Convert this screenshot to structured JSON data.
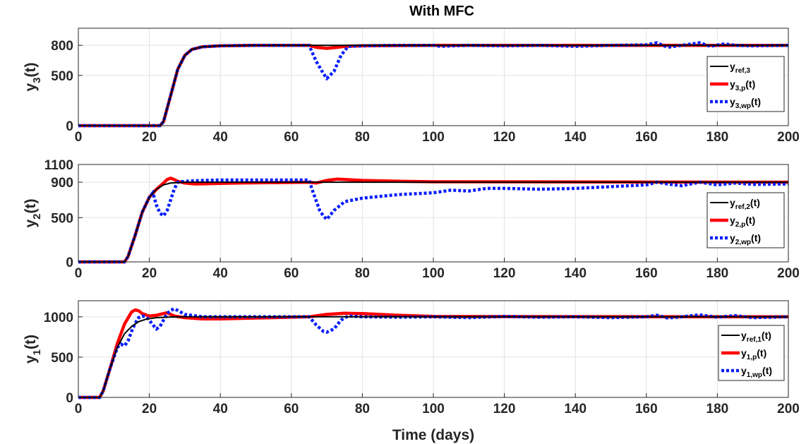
{
  "figure": {
    "title": "With MFC",
    "xlabel": "Time (days)"
  },
  "colors": {
    "ref": "#000000",
    "p": "#ff0000",
    "wp": "#0a1eff",
    "grid": "#e2e2e2"
  },
  "chart_data": [
    {
      "type": "line",
      "ylabel": {
        "main": "y",
        "sub": "3",
        "tail": "(t)"
      },
      "xlim": [
        0,
        200
      ],
      "ylim": [
        0,
        970
      ],
      "xticks": [
        "0",
        "20",
        "40",
        "60",
        "80",
        "100",
        "120",
        "140",
        "160",
        "180",
        "200"
      ],
      "yticks": [
        {
          "v": 0,
          "label": "0"
        },
        {
          "v": 500,
          "label": "500"
        },
        {
          "v": 800,
          "label": "800"
        }
      ],
      "legend_position": "right",
      "legend": [
        {
          "key": "ref",
          "main": "y",
          "sub": "ref,3",
          "tail": ""
        },
        {
          "key": "p",
          "main": "y",
          "sub": "3,p",
          "tail": "(t)"
        },
        {
          "key": "wp",
          "main": "y",
          "sub": "3,wp",
          "tail": "(t)"
        }
      ],
      "series": [
        {
          "key": "ref",
          "style": "solid",
          "x": [
            0,
            23,
            24,
            26,
            28,
            30,
            32,
            35,
            40,
            50,
            60,
            200
          ],
          "y": [
            0,
            0,
            40,
            300,
            560,
            700,
            760,
            785,
            795,
            800,
            800,
            800
          ]
        },
        {
          "key": "p",
          "style": "thick",
          "x": [
            0,
            23,
            24,
            26,
            28,
            30,
            32,
            35,
            40,
            50,
            60,
            65,
            67,
            70,
            73,
            75,
            80,
            100,
            200
          ],
          "y": [
            0,
            0,
            40,
            300,
            560,
            700,
            760,
            785,
            795,
            800,
            800,
            800,
            780,
            770,
            780,
            790,
            795,
            800,
            800
          ]
        },
        {
          "key": "wp",
          "style": "dotted",
          "x": [
            0,
            23,
            24,
            26,
            28,
            30,
            32,
            35,
            40,
            50,
            60,
            65,
            67,
            69,
            70,
            72,
            74,
            76,
            80,
            90,
            100,
            102,
            110,
            120,
            130,
            140,
            150,
            160,
            163,
            166,
            170,
            175,
            178,
            182,
            185,
            190,
            200
          ],
          "y": [
            0,
            0,
            40,
            300,
            560,
            700,
            760,
            785,
            795,
            800,
            800,
            800,
            640,
            520,
            470,
            540,
            700,
            790,
            795,
            800,
            800,
            790,
            800,
            795,
            800,
            790,
            800,
            805,
            825,
            780,
            800,
            825,
            790,
            815,
            800,
            795,
            800
          ]
        }
      ]
    },
    {
      "type": "line",
      "ylabel": {
        "main": "y",
        "sub": "2",
        "tail": "(t)"
      },
      "xlim": [
        0,
        200
      ],
      "ylim": [
        0,
        1100
      ],
      "xticks": [
        "0",
        "20",
        "40",
        "60",
        "80",
        "100",
        "120",
        "140",
        "160",
        "180",
        "200"
      ],
      "yticks": [
        {
          "v": 0,
          "label": "0"
        },
        {
          "v": 500,
          "label": "500"
        },
        {
          "v": 900,
          "label": "900"
        },
        {
          "v": 1100,
          "label": "1100"
        }
      ],
      "legend_position": "right",
      "legend": [
        {
          "key": "ref",
          "main": "y",
          "sub": "ref,2",
          "tail": "(t)"
        },
        {
          "key": "p",
          "main": "y",
          "sub": "2,p",
          "tail": "(t)"
        },
        {
          "key": "wp",
          "main": "y",
          "sub": "2,wp",
          "tail": "(t)"
        }
      ],
      "series": [
        {
          "key": "ref",
          "style": "solid",
          "x": [
            0,
            13,
            14,
            16,
            18,
            20,
            22,
            24,
            26,
            30,
            40,
            200
          ],
          "y": [
            0,
            0,
            60,
            300,
            560,
            730,
            820,
            870,
            890,
            900,
            900,
            900
          ]
        },
        {
          "key": "p",
          "style": "thick",
          "x": [
            0,
            13,
            14,
            16,
            18,
            20,
            22,
            24,
            25,
            26,
            27,
            28,
            30,
            33,
            38,
            45,
            55,
            65,
            67,
            70,
            73,
            80,
            90,
            100,
            200
          ],
          "y": [
            0,
            0,
            60,
            300,
            560,
            730,
            820,
            890,
            930,
            945,
            930,
            910,
            890,
            880,
            885,
            890,
            895,
            900,
            890,
            920,
            935,
            920,
            910,
            905,
            900
          ]
        },
        {
          "key": "wp",
          "style": "dotted",
          "x": [
            0,
            13,
            14,
            16,
            18,
            20,
            21,
            22,
            23,
            24,
            25,
            26,
            27,
            28,
            30,
            35,
            40,
            50,
            60,
            65,
            66,
            68,
            69,
            70,
            72,
            75,
            80,
            90,
            100,
            105,
            110,
            115,
            120,
            130,
            140,
            150,
            160,
            163,
            166,
            170,
            175,
            180,
            185,
            190,
            200
          ],
          "y": [
            0,
            0,
            60,
            300,
            560,
            730,
            780,
            640,
            550,
            520,
            580,
            700,
            820,
            900,
            910,
            920,
            925,
            925,
            925,
            925,
            800,
            580,
            520,
            480,
            580,
            680,
            720,
            760,
            780,
            810,
            800,
            830,
            830,
            820,
            830,
            850,
            870,
            900,
            880,
            860,
            900,
            870,
            890,
            875,
            880
          ]
        }
      ]
    },
    {
      "type": "line",
      "ylabel": {
        "main": "y",
        "sub": "1",
        "tail": "(t)"
      },
      "xlim": [
        0,
        200
      ],
      "ylim": [
        0,
        1200
      ],
      "xticks": [
        "0",
        "20",
        "40",
        "60",
        "80",
        "100",
        "120",
        "140",
        "160",
        "180",
        "200"
      ],
      "yticks": [
        {
          "v": 0,
          "label": "0"
        },
        {
          "v": 500,
          "label": "500"
        },
        {
          "v": 1000,
          "label": "1000"
        }
      ],
      "legend_position": "right",
      "legend": [
        {
          "key": "ref",
          "main": "y",
          "sub": "ref,1",
          "tail": "(t)"
        },
        {
          "key": "p",
          "main": "y",
          "sub": "1,p",
          "tail": "(t)"
        },
        {
          "key": "wp",
          "main": "y",
          "sub": "1,wp",
          "tail": "(t)"
        }
      ],
      "series": [
        {
          "key": "ref",
          "style": "solid",
          "x": [
            0,
            6,
            7,
            9,
            11,
            13,
            15,
            17,
            19,
            22,
            26,
            30,
            40,
            200
          ],
          "y": [
            0,
            0,
            80,
            370,
            620,
            790,
            880,
            940,
            970,
            990,
            998,
            1000,
            1000,
            1000
          ]
        },
        {
          "key": "p",
          "style": "thick",
          "x": [
            0,
            6,
            7,
            9,
            11,
            13,
            15,
            16,
            17,
            18,
            20,
            22,
            25,
            27,
            30,
            35,
            40,
            50,
            60,
            65,
            70,
            75,
            80,
            90,
            100,
            200
          ],
          "y": [
            0,
            0,
            80,
            370,
            670,
            910,
            1060,
            1085,
            1075,
            1040,
            1010,
            1020,
            1050,
            1010,
            990,
            975,
            975,
            985,
            995,
            1000,
            1030,
            1045,
            1040,
            1020,
            1005,
            1000
          ]
        },
        {
          "key": "wp",
          "style": "dotted",
          "x": [
            0,
            6,
            7,
            9,
            11,
            12,
            13,
            14,
            15,
            16,
            17,
            18,
            19,
            20,
            21,
            22,
            23,
            24,
            25,
            26,
            27,
            28,
            30,
            35,
            40,
            50,
            60,
            65,
            67,
            69,
            70,
            72,
            74,
            76,
            80,
            90,
            100,
            110,
            120,
            130,
            140,
            150,
            160,
            163,
            166,
            170,
            175,
            180,
            185,
            190,
            200
          ],
          "y": [
            0,
            0,
            80,
            370,
            620,
            660,
            640,
            700,
            820,
            920,
            990,
            1010,
            1000,
            960,
            900,
            850,
            880,
            960,
            1040,
            1080,
            1100,
            1080,
            1030,
            1000,
            1000,
            1000,
            1000,
            1000,
            900,
            820,
            810,
            850,
            960,
            1010,
            1000,
            995,
            1000,
            990,
            1005,
            995,
            1000,
            990,
            1000,
            1020,
            985,
            1000,
            1025,
            995,
            1015,
            990,
            1000
          ]
        }
      ]
    }
  ]
}
